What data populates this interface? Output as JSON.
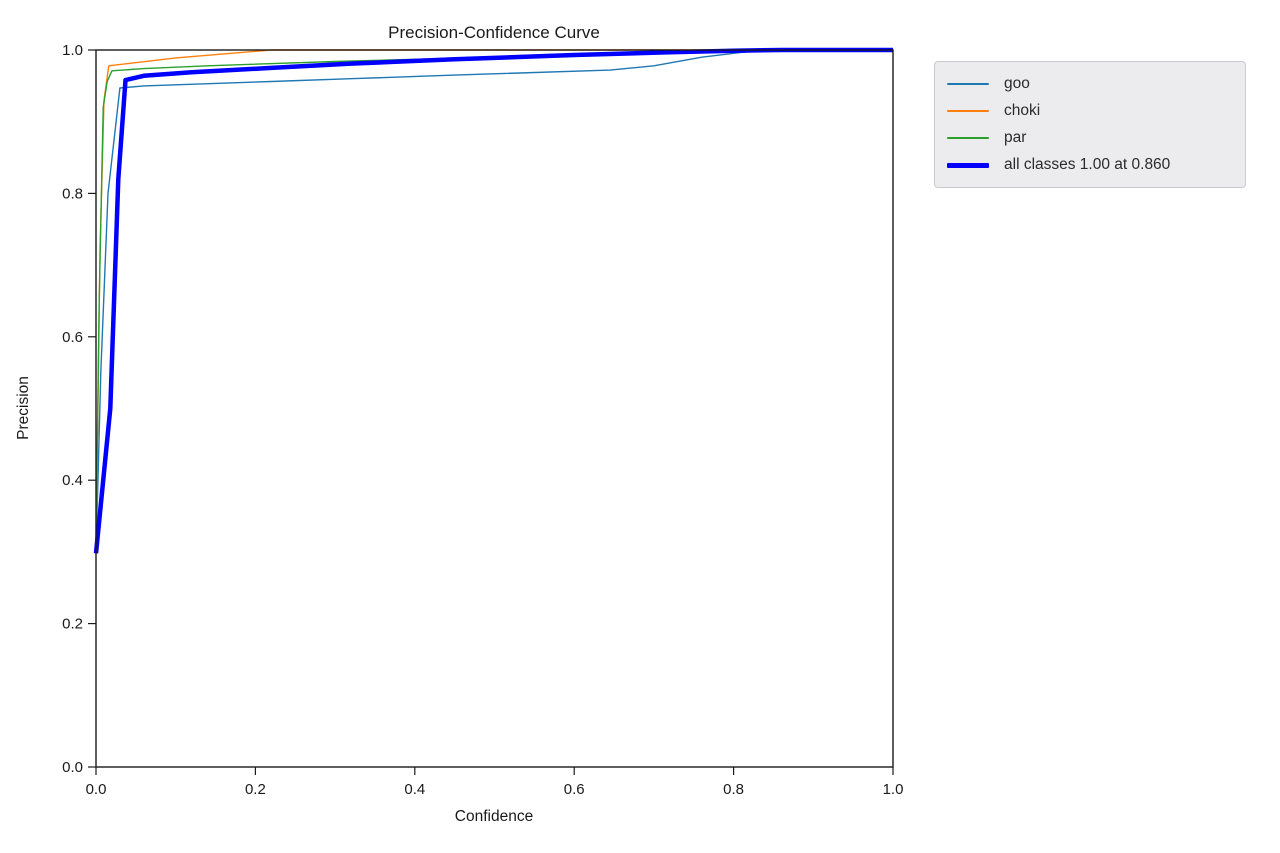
{
  "figure": {
    "background_color": "#ffffff"
  },
  "chart_data": {
    "type": "line",
    "title": "Precision-Confidence Curve",
    "xlabel": "Confidence",
    "ylabel": "Precision",
    "xlim": [
      0.0,
      1.0
    ],
    "ylim": [
      0.0,
      1.0
    ],
    "grid": false,
    "legend_position": "outside-upper-right",
    "x_tick_labels": [
      "0.0",
      "0.2",
      "0.4",
      "0.6",
      "0.8",
      "1.0"
    ],
    "y_tick_labels": [
      "0.0",
      "0.2",
      "0.4",
      "0.6",
      "0.8",
      "1.0"
    ],
    "axis_color": "#1a1a1a",
    "series": [
      {
        "name": "goo",
        "color": "#1f77b4",
        "line_width": 1.4,
        "points": [
          [
            0.0,
            0.298
          ],
          [
            0.006,
            0.55
          ],
          [
            0.015,
            0.8
          ],
          [
            0.03,
            0.947
          ],
          [
            0.06,
            0.95
          ],
          [
            0.22,
            0.956
          ],
          [
            0.32,
            0.96
          ],
          [
            0.45,
            0.965
          ],
          [
            0.645,
            0.972
          ],
          [
            0.7,
            0.978
          ],
          [
            0.76,
            0.99
          ],
          [
            0.82,
            0.998
          ],
          [
            0.9,
            0.999
          ],
          [
            1.0,
            0.999
          ]
        ]
      },
      {
        "name": "choki",
        "color": "#ff7f0e",
        "line_width": 1.4,
        "points": [
          [
            0.0,
            0.3
          ],
          [
            0.005,
            0.72
          ],
          [
            0.01,
            0.93
          ],
          [
            0.016,
            0.978
          ],
          [
            0.1,
            0.989
          ],
          [
            0.22,
            1.0
          ],
          [
            1.0,
            1.0
          ]
        ]
      },
      {
        "name": "par",
        "color": "#2ca02c",
        "line_width": 1.4,
        "points": [
          [
            0.0,
            0.32
          ],
          [
            0.004,
            0.65
          ],
          [
            0.009,
            0.92
          ],
          [
            0.014,
            0.956
          ],
          [
            0.02,
            0.971
          ],
          [
            0.06,
            0.974
          ],
          [
            0.14,
            0.978
          ],
          [
            0.3,
            0.984
          ],
          [
            0.5,
            0.99
          ],
          [
            0.7,
            0.996
          ],
          [
            0.86,
            1.0
          ],
          [
            1.0,
            1.0
          ]
        ]
      },
      {
        "name": "all classes 1.00 at 0.860",
        "color": "#0000ff",
        "line_width": 4.5,
        "points": [
          [
            0.0,
            0.298
          ],
          [
            0.018,
            0.5
          ],
          [
            0.028,
            0.82
          ],
          [
            0.037,
            0.958
          ],
          [
            0.06,
            0.964
          ],
          [
            0.12,
            0.969
          ],
          [
            0.22,
            0.975
          ],
          [
            0.32,
            0.981
          ],
          [
            0.45,
            0.987
          ],
          [
            0.6,
            0.993
          ],
          [
            0.72,
            0.997
          ],
          [
            0.8,
            0.999
          ],
          [
            0.86,
            1.0
          ],
          [
            1.0,
            1.0
          ]
        ]
      }
    ]
  }
}
